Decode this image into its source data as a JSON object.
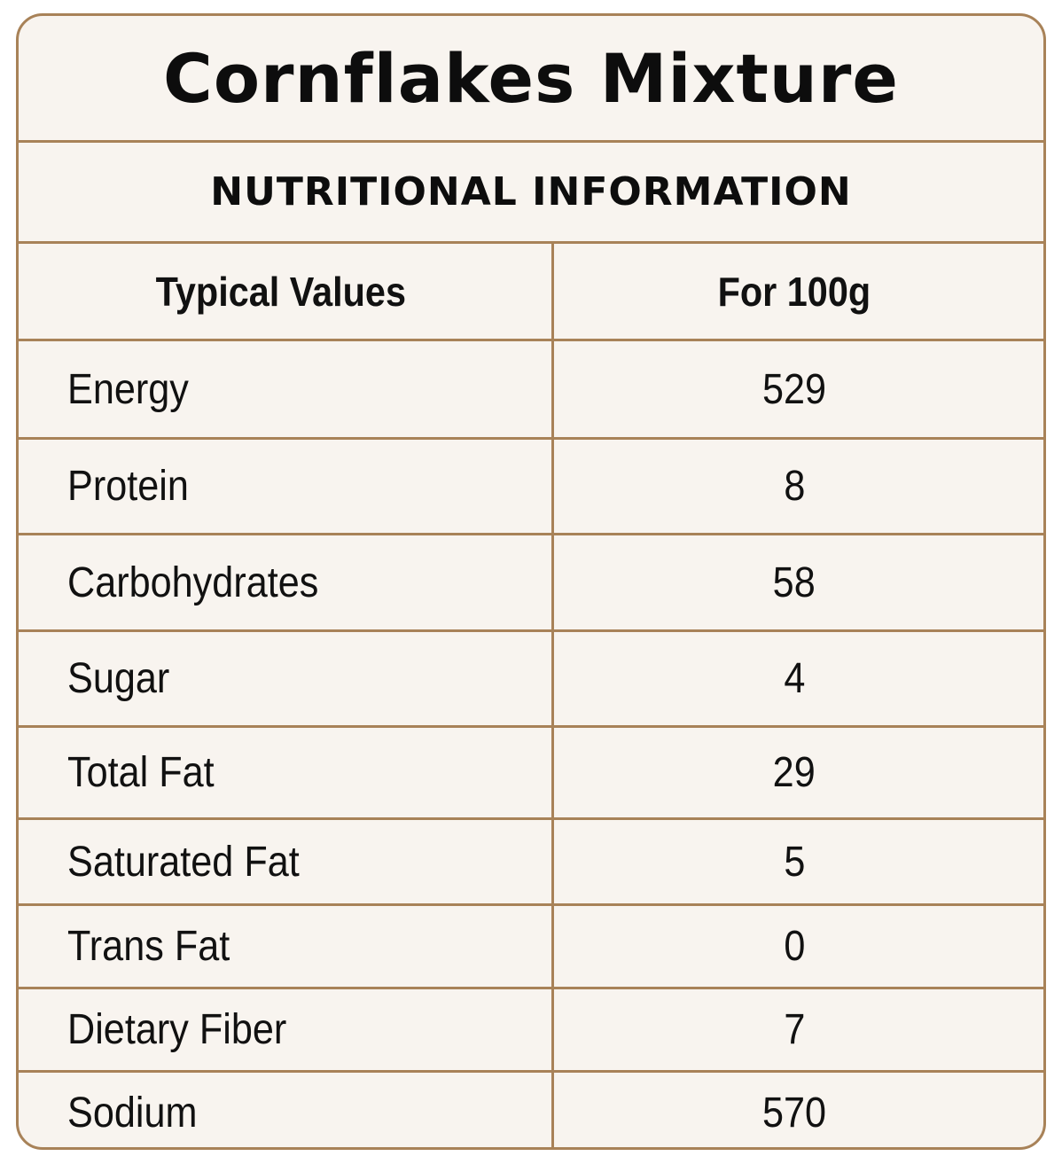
{
  "title": "Cornflakes Mixture",
  "subtitle": "NUTRITIONAL INFORMATION",
  "table": {
    "headers": [
      "Typical Values",
      "For 100g"
    ],
    "rows": [
      {
        "label": "Energy",
        "value": "529"
      },
      {
        "label": "Protein",
        "value": "8"
      },
      {
        "label": "Carbohydrates",
        "value": "58"
      },
      {
        "label": "Sugar",
        "value": "4"
      },
      {
        "label": "Total Fat",
        "value": "29"
      },
      {
        "label": "Saturated Fat",
        "value": "5"
      },
      {
        "label": "Trans Fat",
        "value": "0"
      },
      {
        "label": "Dietary Fiber",
        "value": "7"
      },
      {
        "label": "Sodium",
        "value": "570"
      }
    ]
  },
  "colors": {
    "border": "#a88258",
    "background": "#f8f4ef",
    "text": "#111111"
  }
}
